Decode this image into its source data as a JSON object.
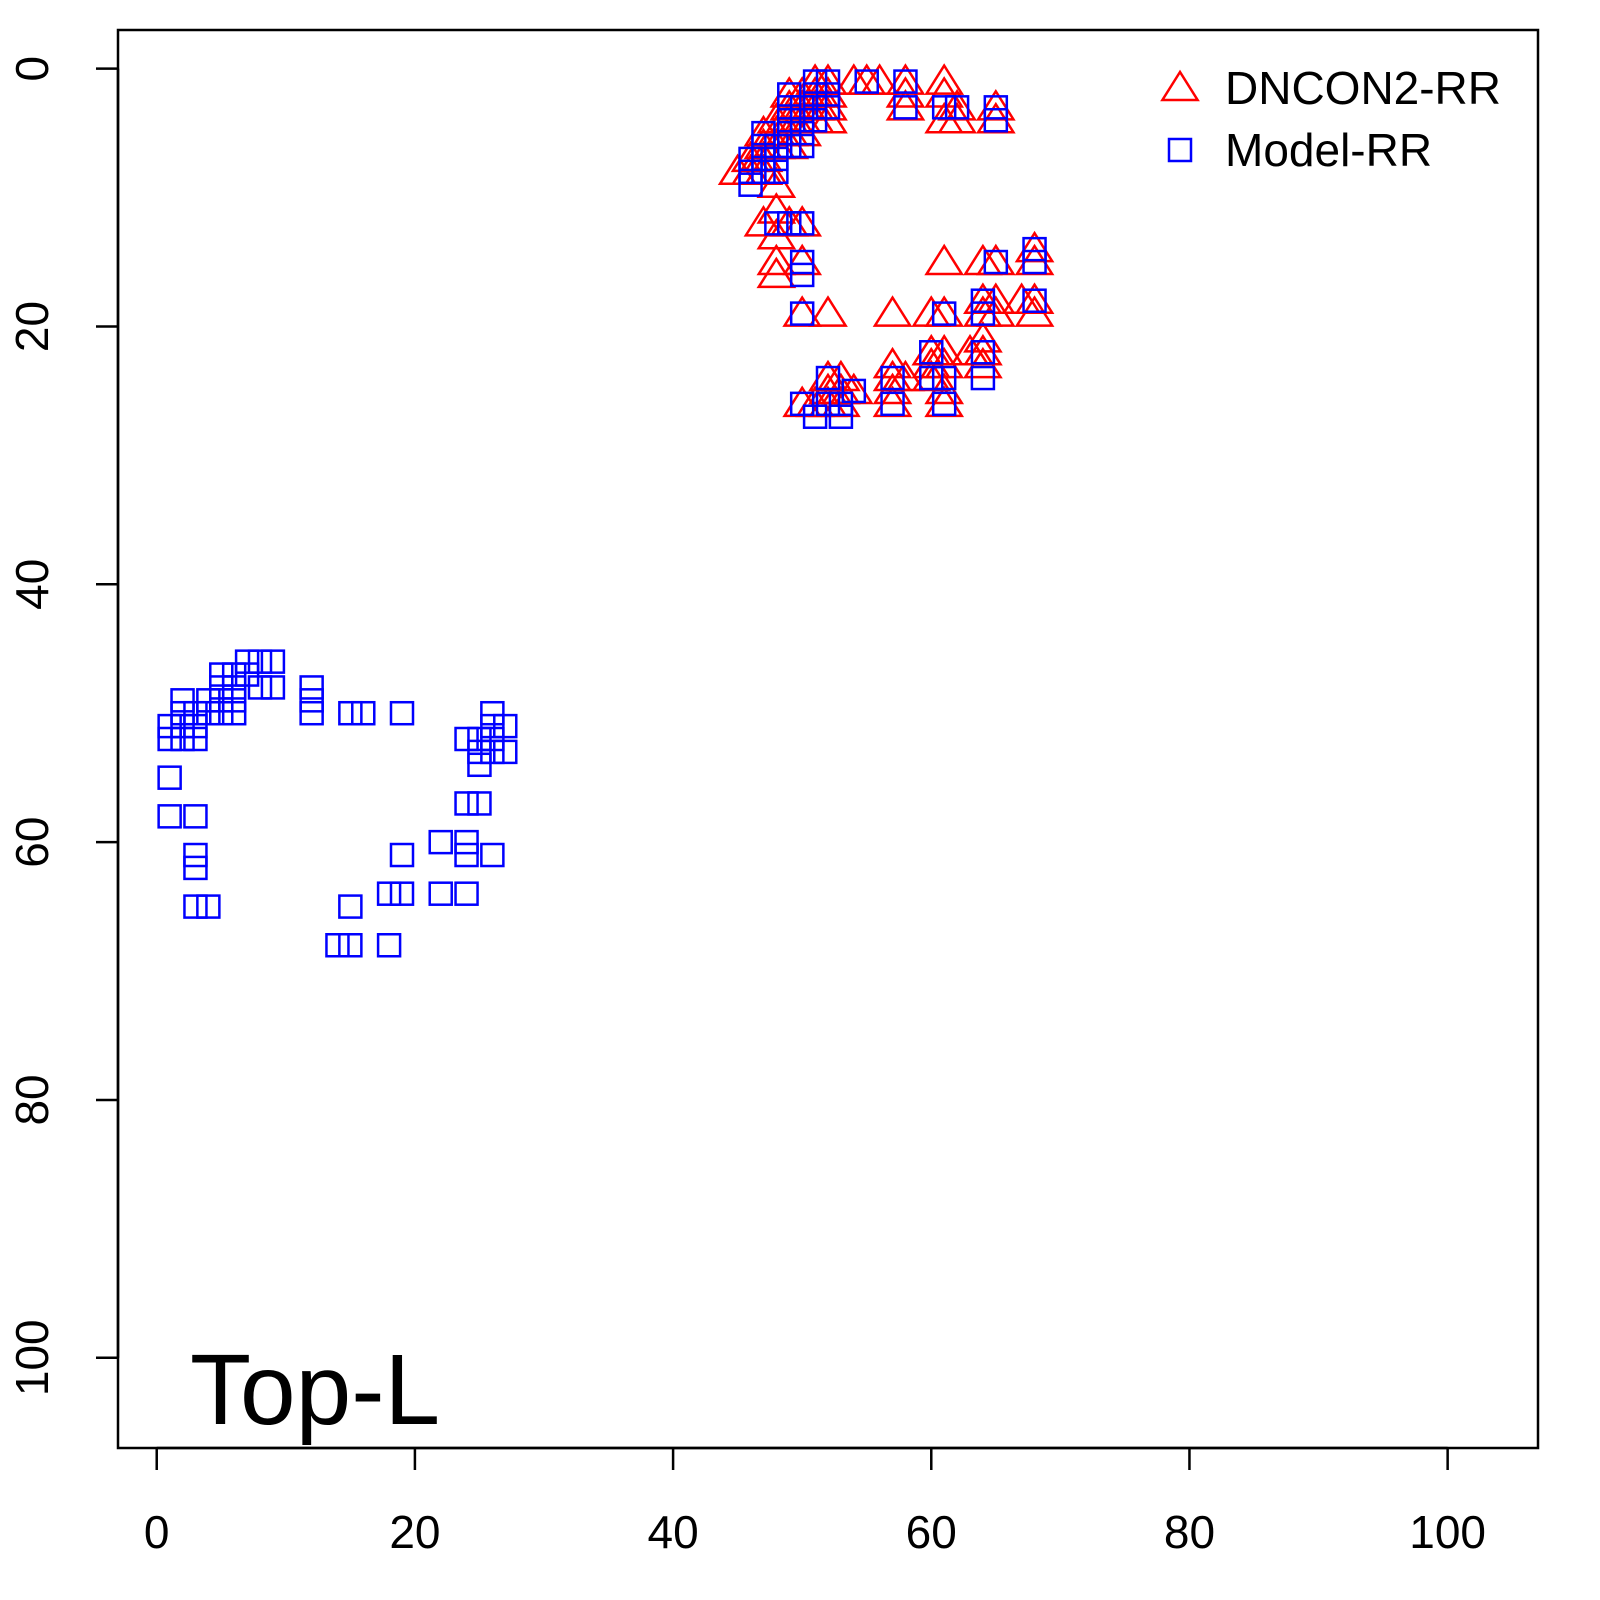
{
  "chart_data": {
    "type": "scatter",
    "annotation": "Top-L",
    "xlim": [
      -3,
      107
    ],
    "ylim": [
      -3,
      107
    ],
    "y_reversed": true,
    "xticks": [
      0,
      20,
      40,
      60,
      80,
      100
    ],
    "yticks": [
      0,
      20,
      40,
      60,
      80,
      100
    ],
    "grid": false,
    "legend": "top-right",
    "series": [
      {
        "name": "DNCON2-RR",
        "color": "#ff0000",
        "marker": "triangle",
        "x": [
          45,
          46,
          46,
          47,
          47,
          47,
          47,
          47,
          48,
          48,
          48,
          48,
          48,
          48,
          48,
          48,
          49,
          49,
          49,
          49,
          49,
          49,
          50,
          50,
          50,
          50,
          50,
          50,
          50,
          50,
          51,
          51,
          51,
          51,
          52,
          52,
          52,
          52,
          52,
          52,
          52,
          52,
          51,
          53,
          53,
          53,
          54,
          54,
          55,
          56,
          57,
          57,
          57,
          57,
          57,
          58,
          58,
          58,
          58,
          60,
          60,
          60,
          60,
          61,
          61,
          61,
          61,
          61,
          61,
          61,
          61,
          61,
          62,
          62,
          63,
          64,
          64,
          64,
          64,
          64,
          64,
          65,
          65,
          65,
          65,
          65,
          67,
          68,
          68,
          68,
          68
        ],
        "y": [
          8,
          7,
          8,
          5,
          6,
          7,
          8,
          12,
          4,
          5,
          6,
          9,
          11,
          13,
          15,
          16,
          2,
          3,
          4,
          5,
          6,
          12,
          2,
          3,
          4,
          5,
          12,
          15,
          19,
          26,
          1,
          2,
          3,
          4,
          1,
          2,
          3,
          4,
          19,
          24,
          25,
          26,
          26,
          24,
          25,
          26,
          1,
          25,
          1,
          1,
          19,
          23,
          24,
          25,
          26,
          1,
          2,
          3,
          24,
          19,
          22,
          23,
          24,
          1,
          2,
          4,
          15,
          19,
          22,
          23,
          25,
          26,
          3,
          4,
          22,
          15,
          18,
          19,
          21,
          22,
          23,
          3,
          4,
          15,
          18,
          19,
          18,
          14,
          15,
          18,
          19
        ]
      },
      {
        "name": "Model-RR",
        "color": "#0000ff",
        "marker": "square",
        "x": [
          1,
          1,
          1,
          1,
          2,
          2,
          2,
          2,
          3,
          3,
          3,
          3,
          3,
          3,
          3,
          4,
          4,
          4,
          5,
          5,
          5,
          5,
          6,
          6,
          6,
          6,
          7,
          7,
          8,
          8,
          9,
          9,
          12,
          12,
          12,
          15,
          16,
          19,
          24,
          25,
          25,
          25,
          26,
          26,
          26,
          27,
          27,
          26,
          24,
          25,
          22,
          24,
          24,
          26,
          19,
          19,
          18,
          22,
          24,
          15,
          14,
          15,
          18,
          46,
          46,
          46,
          47,
          47,
          47,
          47,
          48,
          48,
          48,
          48,
          49,
          49,
          49,
          49,
          49,
          49,
          50,
          50,
          50,
          50,
          50,
          50,
          50,
          50,
          50,
          51,
          51,
          51,
          51,
          52,
          52,
          52,
          52,
          52,
          51,
          53,
          53,
          54,
          55,
          58,
          58,
          57,
          57,
          60,
          60,
          61,
          61,
          61,
          61,
          62,
          64,
          64,
          64,
          64,
          65,
          65,
          65,
          68,
          68,
          68
        ],
        "y": [
          51,
          52,
          55,
          58,
          49,
          50,
          51,
          52,
          50,
          51,
          52,
          58,
          61,
          62,
          65,
          49,
          50,
          65,
          47,
          48,
          49,
          50,
          47,
          48,
          49,
          50,
          46,
          47,
          46,
          48,
          46,
          48,
          48,
          49,
          50,
          50,
          50,
          50,
          52,
          52,
          53,
          54,
          50,
          51,
          52,
          51,
          53,
          53,
          57,
          57,
          60,
          60,
          61,
          61,
          61,
          64,
          64,
          64,
          64,
          65,
          68,
          68,
          68,
          7,
          8,
          9,
          5,
          6,
          7,
          8,
          6,
          7,
          8,
          12,
          2,
          3,
          4,
          5,
          6,
          12,
          3,
          4,
          5,
          6,
          12,
          15,
          16,
          19,
          26,
          1,
          2,
          3,
          4,
          1,
          2,
          3,
          24,
          26,
          27,
          26,
          27,
          25,
          1,
          1,
          3,
          24,
          26,
          22,
          24,
          3,
          19,
          24,
          26,
          3,
          18,
          19,
          22,
          24,
          3,
          4,
          15,
          14,
          15,
          18
        ]
      }
    ]
  }
}
